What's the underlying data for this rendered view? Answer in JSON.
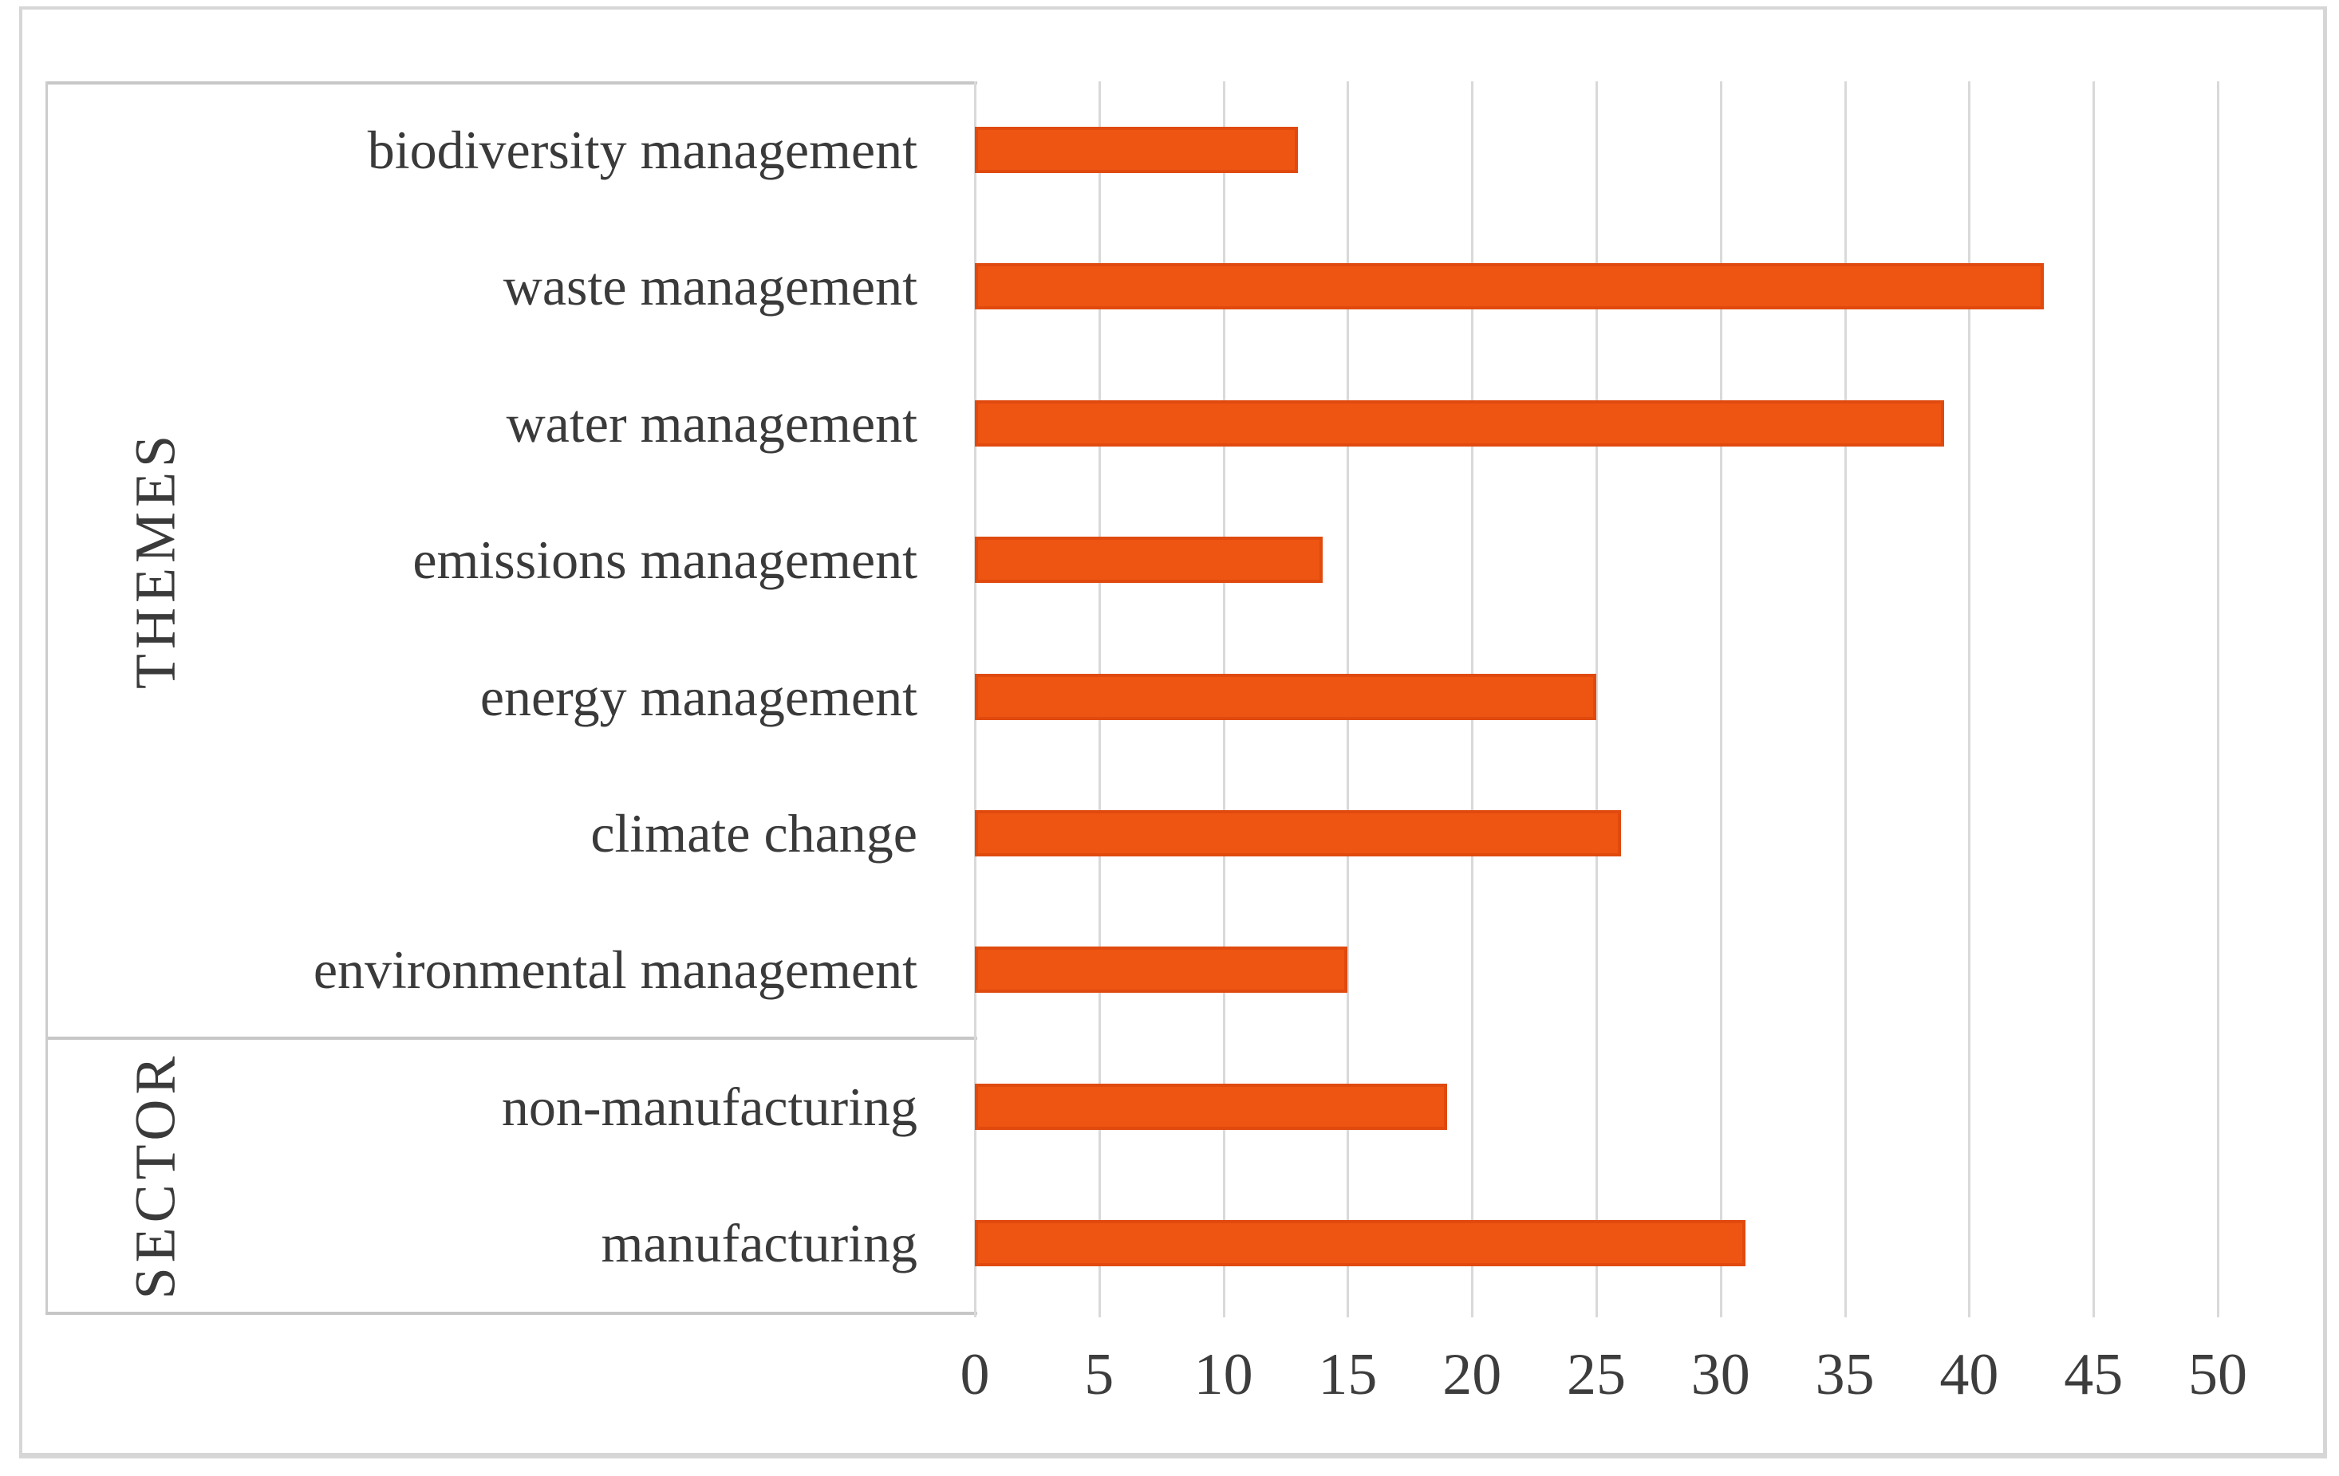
{
  "chart_data": {
    "type": "bar",
    "orientation": "horizontal",
    "title": "",
    "xlabel": "",
    "ylabel": "",
    "xlim": [
      0,
      50
    ],
    "x_ticks": [
      0,
      5,
      10,
      15,
      20,
      25,
      30,
      35,
      40,
      45,
      50
    ],
    "grid": "vertical gridlines every 5 units",
    "legend_position": "none",
    "bar_color": "#ee5512",
    "bar_border_color": "#e04a0e",
    "gridline_color": "#d9d9d9",
    "text_color": "#3a3a3a",
    "categories": [
      "biodiversity management",
      "waste management",
      "water management",
      "emissions management",
      "energy management",
      "climate change",
      "environmental management",
      "non-manufacturing",
      "manufacturing"
    ],
    "values": [
      13,
      43,
      39,
      14,
      25,
      26,
      15,
      19,
      31
    ],
    "groups": [
      {
        "label": "THEMES",
        "categories": [
          "biodiversity management",
          "waste management",
          "water management",
          "emissions management",
          "energy management",
          "climate change",
          "environmental management"
        ],
        "values": [
          13,
          43,
          39,
          14,
          25,
          26,
          15
        ]
      },
      {
        "label": "SECTOR",
        "categories": [
          "non-manufacturing",
          "manufacturing"
        ],
        "values": [
          19,
          31
        ]
      }
    ]
  }
}
